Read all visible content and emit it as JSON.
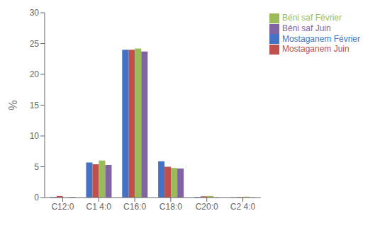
{
  "chart_data": {
    "type": "bar",
    "categories": [
      "C12:0",
      "C1 4:0",
      "C16:0",
      "C18:0",
      "C20:0",
      "C2 4:0"
    ],
    "series": [
      {
        "name": "Mostaganem Février",
        "color": "#4472C4",
        "values": [
          0.1,
          5.7,
          24.0,
          5.9,
          0.1,
          0.05
        ]
      },
      {
        "name": "Mostaganem Juin",
        "color": "#C0504D",
        "values": [
          0.25,
          5.4,
          24.0,
          5.0,
          0.2,
          0.1
        ]
      },
      {
        "name": "Béni saf Février",
        "color": "#9BBB59",
        "values": [
          0.05,
          6.0,
          24.2,
          4.8,
          0.25,
          0.15
        ]
      },
      {
        "name": "Béni saf Juin",
        "color": "#8064A2",
        "values": [
          0.1,
          5.3,
          23.7,
          4.7,
          0.05,
          0.05
        ]
      }
    ],
    "ylabel": "%",
    "ylim": [
      0,
      30
    ],
    "yticks": [
      0,
      5,
      10,
      15,
      20,
      25,
      30
    ],
    "grid": false,
    "legend": "right"
  }
}
